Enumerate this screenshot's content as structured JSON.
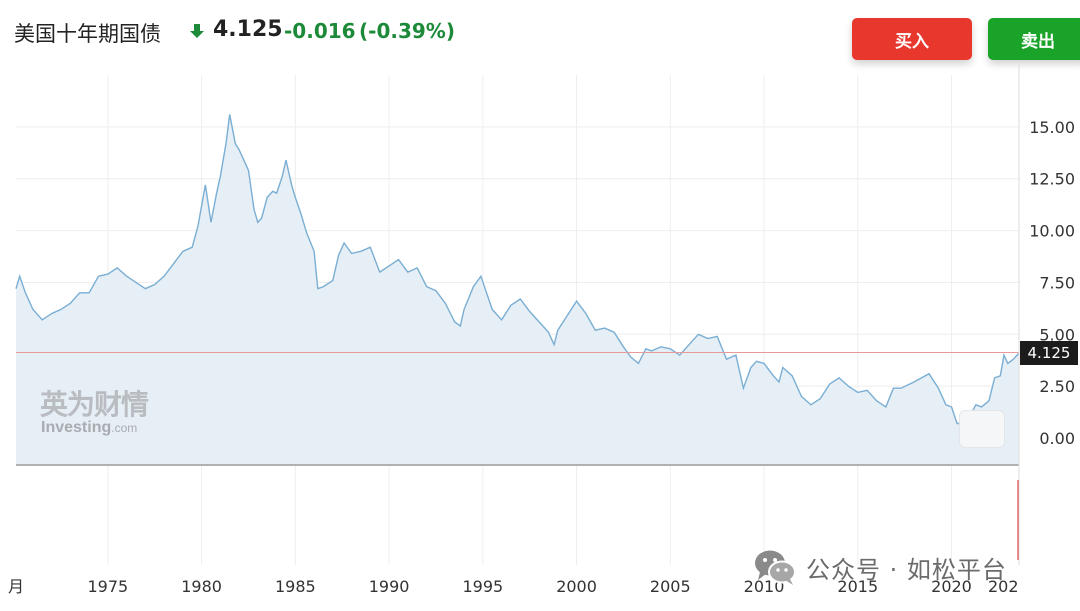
{
  "header": {
    "title": "美国十年期国债",
    "price": "4.125",
    "change": "-0.016",
    "change_pct": "(-0.39%)",
    "direction_icon": "down-arrow-icon",
    "down_color": "#1d8a3a"
  },
  "buttons": {
    "buy": "买入",
    "sell": "卖出",
    "buy_color": "#e8372c",
    "sell_color": "#1aa329"
  },
  "watermark": {
    "cn": "英为财情",
    "en": "Investing",
    "en_suffix": ".com"
  },
  "wechat_watermark": {
    "icon": "wechat-icon",
    "text": "公众号 · 如松平台"
  },
  "current_price_label": "4.125",
  "chart_data": {
    "type": "area",
    "title": "",
    "xlabel": "",
    "ylabel": "",
    "line_color": "#7aaed3",
    "fill_color": "#e6eef6",
    "reference_line_color": "#e79a9a",
    "ylim": [
      -1.3,
      17.5
    ],
    "xlim": [
      1970.1,
      2023.6
    ],
    "yticks": [
      0.0,
      2.5,
      5.0,
      7.5,
      10.0,
      12.5,
      15.0
    ],
    "ytick_labels": [
      "0.00",
      "2.50",
      "5.00",
      "7.50",
      "10.00",
      "12.50",
      "15.00"
    ],
    "xticks": [
      1975,
      1980,
      1985,
      1990,
      1995,
      2000,
      2005,
      2010,
      2015,
      2020
    ],
    "xtick_labels": [
      "1975",
      "1980",
      "1985",
      "1990",
      "1995",
      "2000",
      "2005",
      "2010",
      "2015",
      "2020"
    ],
    "partial_left_label": "月",
    "partial_right_label": "202",
    "current_value": 4.125,
    "series": [
      {
        "x": [
          1970.1,
          1970.3,
          1970.6,
          1971.0,
          1971.5,
          1972.0,
          1972.5,
          1973.0,
          1973.5,
          1974.0,
          1974.5,
          1975.0,
          1975.5,
          1976.0,
          1976.5,
          1977.0,
          1977.5,
          1978.0,
          1978.5,
          1979.0,
          1979.5,
          1979.8,
          1980.0,
          1980.2,
          1980.5,
          1980.8,
          1981.0,
          1981.3,
          1981.5,
          1981.8,
          1982.0,
          1982.3,
          1982.5,
          1982.8,
          1983.0,
          1983.2,
          1983.5,
          1983.8,
          1984.0,
          1984.3,
          1984.5,
          1984.8,
          1985.0,
          1985.3,
          1985.6,
          1986.0,
          1986.2,
          1986.5,
          1987.0,
          1987.3,
          1987.6,
          1988.0,
          1988.5,
          1989.0,
          1989.5,
          1990.0,
          1990.5,
          1991.0,
          1991.5,
          1992.0,
          1992.5,
          1993.0,
          1993.5,
          1993.8,
          1994.0,
          1994.5,
          1994.9,
          1995.5,
          1996.0,
          1996.5,
          1997.0,
          1997.5,
          1998.0,
          1998.5,
          1998.8,
          1999.0,
          1999.5,
          2000.0,
          2000.5,
          2001.0,
          2001.5,
          2002.0,
          2002.5,
          2002.9,
          2003.3,
          2003.7,
          2004.0,
          2004.5,
          2005.0,
          2005.5,
          2006.0,
          2006.5,
          2007.0,
          2007.5,
          2008.0,
          2008.5,
          2008.9,
          2009.3,
          2009.6,
          2010.0,
          2010.5,
          2010.8,
          2011.0,
          2011.5,
          2012.0,
          2012.5,
          2013.0,
          2013.5,
          2014.0,
          2014.5,
          2015.0,
          2015.5,
          2016.0,
          2016.5,
          2016.9,
          2017.3,
          2018.0,
          2018.8,
          2019.3,
          2019.7,
          2020.0,
          2020.3,
          2020.6,
          2021.0,
          2021.3,
          2021.6,
          2022.0,
          2022.3,
          2022.6,
          2022.8,
          2023.0,
          2023.3,
          2023.6
        ],
        "values": [
          7.2,
          7.8,
          7.0,
          6.2,
          5.7,
          6.0,
          6.2,
          6.5,
          7.0,
          7.0,
          7.8,
          7.9,
          8.2,
          7.8,
          7.5,
          7.2,
          7.4,
          7.8,
          8.4,
          9.0,
          9.2,
          10.2,
          11.2,
          12.2,
          10.4,
          11.8,
          12.6,
          14.2,
          15.6,
          14.2,
          13.9,
          13.3,
          12.9,
          11.0,
          10.4,
          10.6,
          11.6,
          11.9,
          11.8,
          12.6,
          13.4,
          12.2,
          11.6,
          10.8,
          9.9,
          9.0,
          7.2,
          7.3,
          7.6,
          8.8,
          9.4,
          8.9,
          9.0,
          9.2,
          8.0,
          8.3,
          8.6,
          8.0,
          8.2,
          7.3,
          7.1,
          6.5,
          5.6,
          5.4,
          6.2,
          7.3,
          7.8,
          6.2,
          5.7,
          6.4,
          6.7,
          6.1,
          5.6,
          5.1,
          4.5,
          5.2,
          5.9,
          6.6,
          6.0,
          5.2,
          5.3,
          5.1,
          4.4,
          3.9,
          3.6,
          4.3,
          4.2,
          4.4,
          4.3,
          4.0,
          4.5,
          5.0,
          4.8,
          4.9,
          3.8,
          4.0,
          2.4,
          3.4,
          3.7,
          3.6,
          3.0,
          2.7,
          3.4,
          3.0,
          2.0,
          1.6,
          1.9,
          2.6,
          2.9,
          2.5,
          2.2,
          2.3,
          1.8,
          1.5,
          2.4,
          2.4,
          2.7,
          3.1,
          2.4,
          1.6,
          1.5,
          0.7,
          0.7,
          1.1,
          1.6,
          1.5,
          1.8,
          2.9,
          3.0,
          4.0,
          3.6,
          3.8,
          4.1
        ]
      }
    ]
  }
}
